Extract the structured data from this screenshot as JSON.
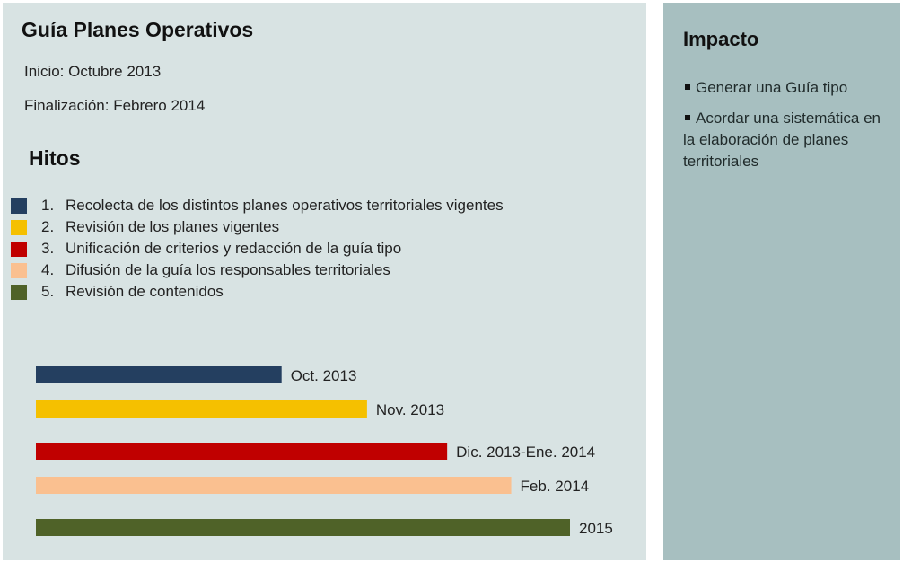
{
  "left": {
    "title": "Guía Planes Operativos",
    "start": "Inicio: Octubre 2013",
    "end": "Finalización: Febrero 2014",
    "hitos_title": "Hitos"
  },
  "legend": [
    {
      "num": "1.",
      "label": "Recolecta de los distintos planes operativos territoriales vigentes",
      "color": "#243f60"
    },
    {
      "num": "2.",
      "label": "Revisión de los planes vigentes",
      "color": "#f5c000"
    },
    {
      "num": "3.",
      "label": "Unificación de criterios y redacción de la guía tipo",
      "color": "#c00000"
    },
    {
      "num": "4.",
      "label": "Difusión de la guía  los responsables territoriales",
      "color": "#fac090"
    },
    {
      "num": "5.",
      "label": "Revisión de contenidos",
      "color": "#4f6228"
    }
  ],
  "chart_data": {
    "type": "bar",
    "orientation": "horizontal",
    "categories": [
      "Recolecta",
      "Revisión",
      "Unificación",
      "Difusión",
      "Revisión de contenidos"
    ],
    "values": [
      1,
      2,
      3,
      4,
      5
    ],
    "value_unit": "ordinal end milestone (Oct. 2013 = 1 … 2015 = 5)",
    "data_labels": [
      "Oct.  2013",
      "Nov. 2013",
      "Dic. 2013-Ene. 2014",
      "Feb. 2014",
      "2015"
    ],
    "colors": [
      "#243f60",
      "#f5c000",
      "#c00000",
      "#fac090",
      "#4f6228"
    ],
    "bar_ends": [
      0.46,
      0.62,
      0.77,
      0.89,
      1.0
    ],
    "title": "",
    "xlabel": "",
    "ylabel": ""
  },
  "right": {
    "title": "Impacto",
    "items": [
      "Generar una Guía tipo",
      "Acordar una sistemática en la elaboración de planes territoriales"
    ]
  }
}
